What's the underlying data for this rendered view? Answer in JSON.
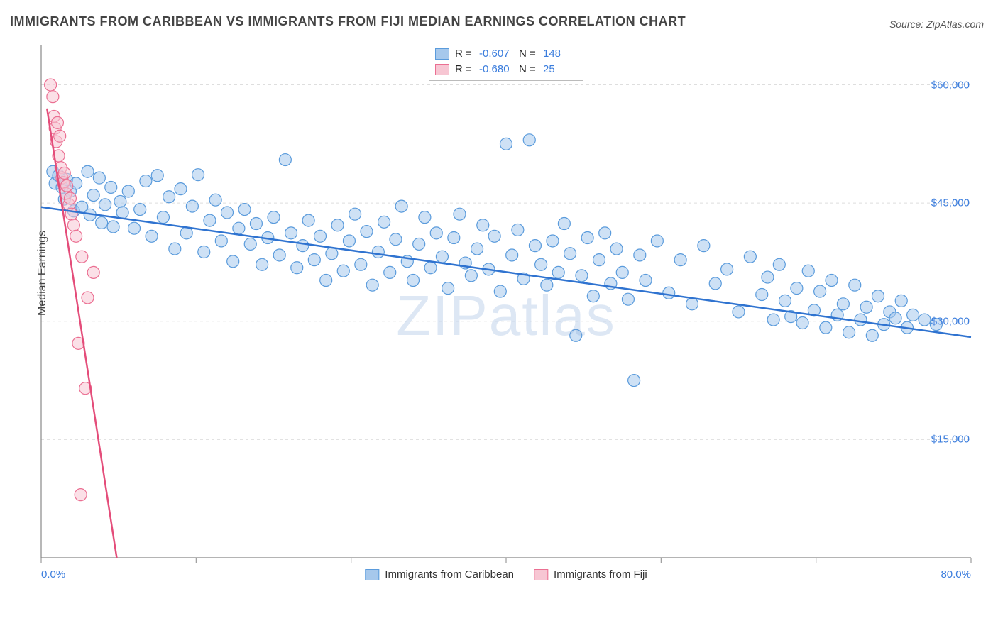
{
  "title": "IMMIGRANTS FROM CARIBBEAN VS IMMIGRANTS FROM FIJI MEDIAN EARNINGS CORRELATION CHART",
  "source": "Source: ZipAtlas.com",
  "watermark": "ZIPatlas",
  "y_axis": {
    "label": "Median Earnings"
  },
  "legend_top": {
    "rows": [
      {
        "swatch_fill": "#a6c8ec",
        "swatch_border": "#5a9bdc",
        "r_label": "R =",
        "r_value": "-0.607",
        "n_label": "N =",
        "n_value": "148"
      },
      {
        "swatch_fill": "#f7c6d3",
        "swatch_border": "#eb6f92",
        "r_label": "R =",
        "r_value": "-0.680",
        "n_label": "N =",
        "n_value": "25"
      }
    ]
  },
  "legend_bottom": {
    "items": [
      {
        "swatch_fill": "#a6c8ec",
        "swatch_border": "#5a9bdc",
        "label": "Immigrants from Caribbean"
      },
      {
        "swatch_fill": "#f7c6d3",
        "swatch_border": "#eb6f92",
        "label": "Immigrants from Fiji"
      }
    ]
  },
  "chart": {
    "type": "scatter",
    "background_color": "#ffffff",
    "grid_color": "#dedede",
    "axis_color": "#888888",
    "xlim": [
      0,
      80
    ],
    "ylim": [
      0,
      65000
    ],
    "x_ticks": [
      0,
      13.33,
      26.67,
      40,
      53.33,
      66.67,
      80
    ],
    "y_ticks": [
      15000,
      30000,
      45000,
      60000
    ],
    "y_tick_labels": [
      "$15,000",
      "$30,000",
      "$45,000",
      "$60,000"
    ],
    "x_axis_min_label": "0.0%",
    "x_axis_max_label": "80.0%",
    "marker_radius": 8.5,
    "marker_opacity": 0.55,
    "trend_line_width": 2.5,
    "series": [
      {
        "name": "caribbean",
        "color_fill": "#a6c8ec",
        "color_stroke": "#5a9bdc",
        "trend_color": "#2f73d0",
        "trend": {
          "x1": 0,
          "y1": 44500,
          "x2": 80,
          "y2": 28000
        },
        "points": [
          [
            1.0,
            49000
          ],
          [
            1.2,
            47500
          ],
          [
            1.5,
            48500
          ],
          [
            1.8,
            47000
          ],
          [
            2.0,
            45500
          ],
          [
            2.2,
            48000
          ],
          [
            2.5,
            46500
          ],
          [
            2.8,
            44000
          ],
          [
            3.0,
            47500
          ],
          [
            3.5,
            44500
          ],
          [
            4.0,
            49000
          ],
          [
            4.2,
            43500
          ],
          [
            4.5,
            46000
          ],
          [
            5.0,
            48200
          ],
          [
            5.2,
            42500
          ],
          [
            5.5,
            44800
          ],
          [
            6.0,
            47000
          ],
          [
            6.2,
            42000
          ],
          [
            6.8,
            45200
          ],
          [
            7.0,
            43800
          ],
          [
            7.5,
            46500
          ],
          [
            8.0,
            41800
          ],
          [
            8.5,
            44200
          ],
          [
            9.0,
            47800
          ],
          [
            9.5,
            40800
          ],
          [
            10.0,
            48500
          ],
          [
            10.5,
            43200
          ],
          [
            11.0,
            45800
          ],
          [
            11.5,
            39200
          ],
          [
            12.0,
            46800
          ],
          [
            12.5,
            41200
          ],
          [
            13.0,
            44600
          ],
          [
            13.5,
            48600
          ],
          [
            14.0,
            38800
          ],
          [
            14.5,
            42800
          ],
          [
            15.0,
            45400
          ],
          [
            15.5,
            40200
          ],
          [
            16.0,
            43800
          ],
          [
            16.5,
            37600
          ],
          [
            17.0,
            41800
          ],
          [
            17.5,
            44200
          ],
          [
            18.0,
            39800
          ],
          [
            18.5,
            42400
          ],
          [
            19.0,
            37200
          ],
          [
            19.5,
            40600
          ],
          [
            20.0,
            43200
          ],
          [
            20.5,
            38400
          ],
          [
            21.0,
            50500
          ],
          [
            21.5,
            41200
          ],
          [
            22.0,
            36800
          ],
          [
            22.5,
            39600
          ],
          [
            23.0,
            42800
          ],
          [
            23.5,
            37800
          ],
          [
            24.0,
            40800
          ],
          [
            24.5,
            35200
          ],
          [
            25.0,
            38600
          ],
          [
            25.5,
            42200
          ],
          [
            26.0,
            36400
          ],
          [
            26.5,
            40200
          ],
          [
            27.0,
            43600
          ],
          [
            27.5,
            37200
          ],
          [
            28.0,
            41400
          ],
          [
            28.5,
            34600
          ],
          [
            29.0,
            38800
          ],
          [
            29.5,
            42600
          ],
          [
            30.0,
            36200
          ],
          [
            30.5,
            40400
          ],
          [
            31.0,
            44600
          ],
          [
            31.5,
            37600
          ],
          [
            32.0,
            35200
          ],
          [
            32.5,
            39800
          ],
          [
            33.0,
            43200
          ],
          [
            33.5,
            36800
          ],
          [
            34.0,
            41200
          ],
          [
            34.5,
            38200
          ],
          [
            35.0,
            34200
          ],
          [
            35.5,
            40600
          ],
          [
            36.0,
            43600
          ],
          [
            36.5,
            37400
          ],
          [
            37.0,
            35800
          ],
          [
            37.5,
            39200
          ],
          [
            38.0,
            42200
          ],
          [
            38.5,
            36600
          ],
          [
            39.0,
            40800
          ],
          [
            39.5,
            33800
          ],
          [
            40.0,
            52500
          ],
          [
            40.5,
            38400
          ],
          [
            41.0,
            41600
          ],
          [
            41.5,
            35400
          ],
          [
            42.0,
            53000
          ],
          [
            42.5,
            39600
          ],
          [
            43.0,
            37200
          ],
          [
            43.5,
            34600
          ],
          [
            44.0,
            40200
          ],
          [
            44.5,
            36200
          ],
          [
            45.0,
            42400
          ],
          [
            45.5,
            38600
          ],
          [
            46.0,
            28200
          ],
          [
            46.5,
            35800
          ],
          [
            47.0,
            40600
          ],
          [
            47.5,
            33200
          ],
          [
            48.0,
            37800
          ],
          [
            48.5,
            41200
          ],
          [
            49.0,
            34800
          ],
          [
            49.5,
            39200
          ],
          [
            50.0,
            36200
          ],
          [
            50.5,
            32800
          ],
          [
            51.0,
            22500
          ],
          [
            51.5,
            38400
          ],
          [
            52.0,
            35200
          ],
          [
            53.0,
            40200
          ],
          [
            54.0,
            33600
          ],
          [
            55.0,
            37800
          ],
          [
            56.0,
            32200
          ],
          [
            57.0,
            39600
          ],
          [
            58.0,
            34800
          ],
          [
            59.0,
            36600
          ],
          [
            60.0,
            31200
          ],
          [
            61.0,
            38200
          ],
          [
            62.0,
            33400
          ],
          [
            62.5,
            35600
          ],
          [
            63.0,
            30200
          ],
          [
            63.5,
            37200
          ],
          [
            64.0,
            32600
          ],
          [
            64.5,
            30600
          ],
          [
            65.0,
            34200
          ],
          [
            65.5,
            29800
          ],
          [
            66.0,
            36400
          ],
          [
            66.5,
            31400
          ],
          [
            67.0,
            33800
          ],
          [
            67.5,
            29200
          ],
          [
            68.0,
            35200
          ],
          [
            68.5,
            30800
          ],
          [
            69.0,
            32200
          ],
          [
            69.5,
            28600
          ],
          [
            70.0,
            34600
          ],
          [
            70.5,
            30200
          ],
          [
            71.0,
            31800
          ],
          [
            71.5,
            28200
          ],
          [
            72.0,
            33200
          ],
          [
            72.5,
            29600
          ],
          [
            73.0,
            31200
          ],
          [
            73.5,
            30400
          ],
          [
            74.0,
            32600
          ],
          [
            74.5,
            29200
          ],
          [
            75.0,
            30800
          ],
          [
            76.0,
            30200
          ],
          [
            77.0,
            29600
          ]
        ]
      },
      {
        "name": "fiji",
        "color_fill": "#f7c6d3",
        "color_stroke": "#eb6f92",
        "trend_color": "#e44d7a",
        "trend": {
          "x1": 0.5,
          "y1": 57000,
          "x2": 6.5,
          "y2": 0
        },
        "points": [
          [
            0.8,
            60000
          ],
          [
            1.0,
            58500
          ],
          [
            1.1,
            56000
          ],
          [
            1.2,
            54500
          ],
          [
            1.3,
            52800
          ],
          [
            1.4,
            55200
          ],
          [
            1.5,
            51000
          ],
          [
            1.6,
            53500
          ],
          [
            1.7,
            49500
          ],
          [
            1.8,
            48200
          ],
          [
            1.9,
            47600
          ],
          [
            2.0,
            48800
          ],
          [
            2.1,
            46200
          ],
          [
            2.2,
            47200
          ],
          [
            2.4,
            44800
          ],
          [
            2.6,
            43600
          ],
          [
            2.8,
            42200
          ],
          [
            3.0,
            40800
          ],
          [
            3.5,
            38200
          ],
          [
            4.0,
            33000
          ],
          [
            4.5,
            36200
          ],
          [
            3.2,
            27200
          ],
          [
            3.8,
            21500
          ],
          [
            2.5,
            45600
          ],
          [
            3.4,
            8000
          ]
        ]
      }
    ]
  }
}
